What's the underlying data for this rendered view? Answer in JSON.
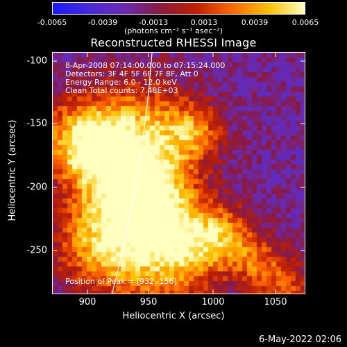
{
  "colorbar": {
    "ticks": [
      "-0.0065",
      "-0.0039",
      "-0.0013",
      "0.0013",
      "0.0039",
      "0.0065"
    ],
    "units": "(photons cm⁻² s⁻¹ asec⁻²)",
    "colormap": [
      "#1a1aff",
      "#4a2ad8",
      "#6a2ab0",
      "#8a1a40",
      "#c02000",
      "#ff6a00",
      "#ffc000",
      "#ffffc0"
    ]
  },
  "title": "Reconstructed RHESSI Image",
  "annotations": {
    "time": "8-Apr-2008 07:14:00.000 to 07:15:24.000",
    "detectors": "Detectors: 3F 4F 5F 6F 7F 8F, Att 0",
    "energy": "Energy Range: 6.0 - 12.0 keV",
    "clean": "Clean    Total counts: 7.48E+03",
    "peak": "Position of Peak = [932,-156]"
  },
  "axes": {
    "xlabel": "Heliocentric X (arcsec)",
    "ylabel": "Heliocentric Y (arcsec)",
    "xticks": [
      "900",
      "950",
      "1000",
      "1050"
    ],
    "yticks": [
      "-100",
      "-150",
      "-200",
      "-250"
    ],
    "xlim": [
      872,
      1064
    ],
    "ylim": [
      -284,
      -91
    ]
  },
  "footer": {
    "date": "6-May-2022 02:06"
  }
}
